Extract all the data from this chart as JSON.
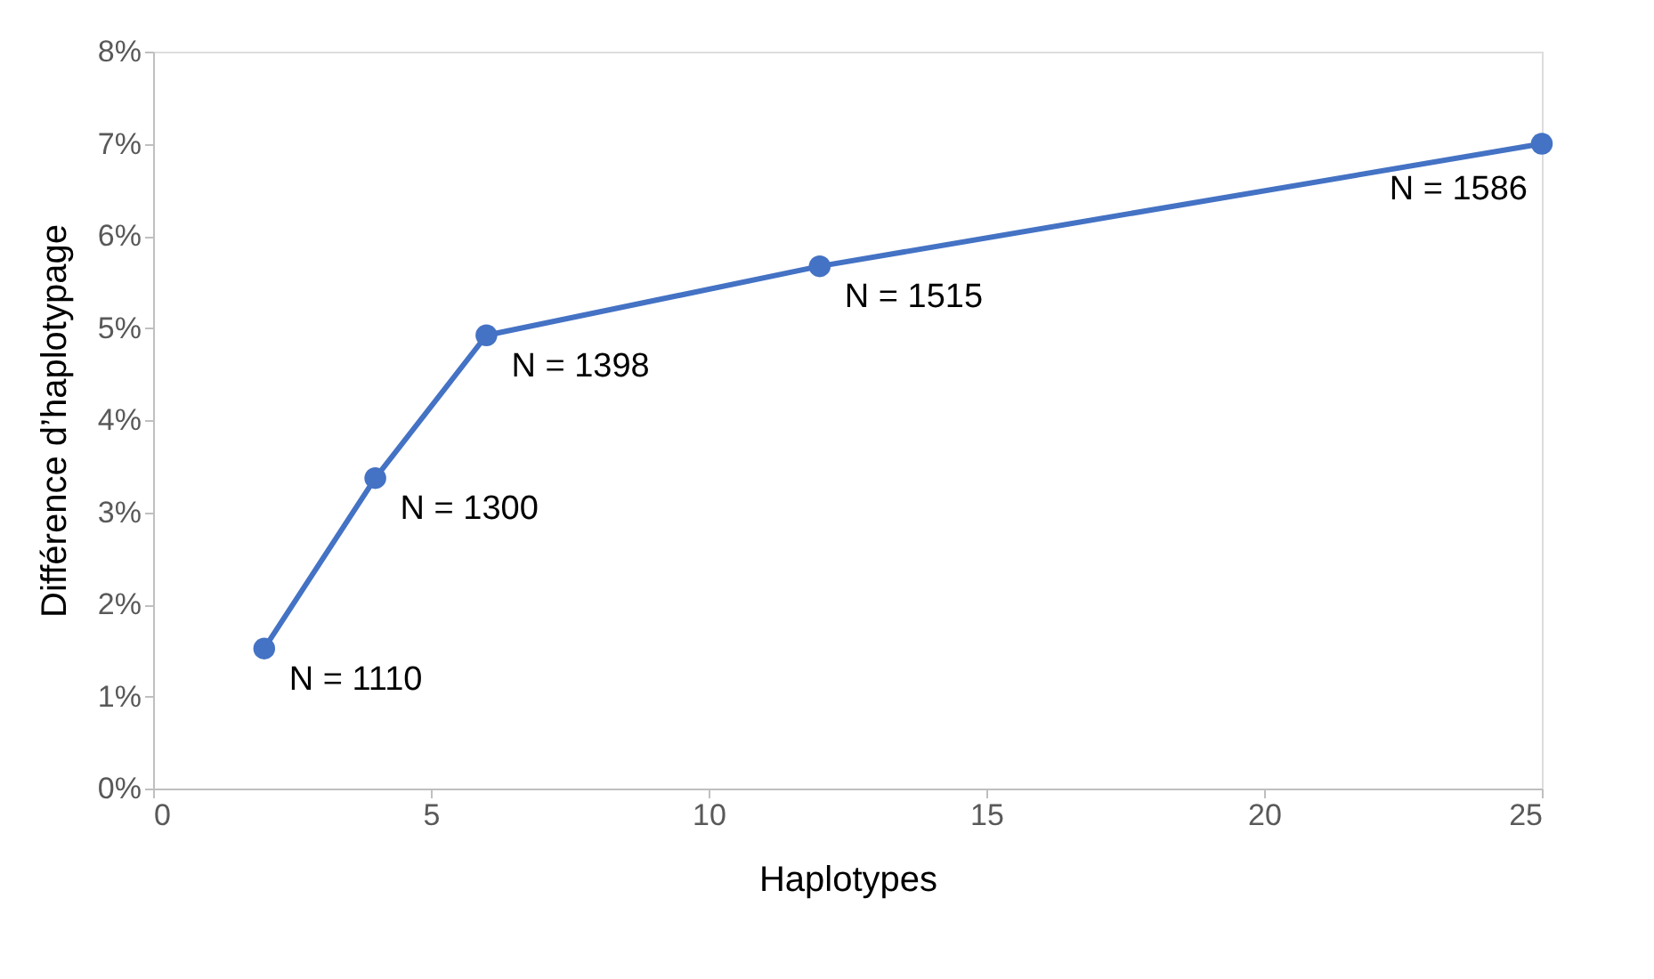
{
  "chart_data": {
    "type": "line",
    "xlabel": "Haplotypes",
    "ylabel": "Différence d’haplotypage",
    "x": [
      2,
      4,
      6,
      12,
      25
    ],
    "series": [
      {
        "color": "#4472c4",
        "values": [
          1.52,
          3.37,
          4.92,
          5.67,
          7.0
        ]
      }
    ],
    "xlim": [
      0,
      25
    ],
    "xticks": [
      0,
      5,
      10,
      15,
      20,
      25
    ],
    "ylim": [
      0,
      8
    ],
    "yticks": [
      {
        "value": 0,
        "label": "0%"
      },
      {
        "value": 1,
        "label": "1%"
      },
      {
        "value": 2,
        "label": "2%"
      },
      {
        "value": 3,
        "label": "3%"
      },
      {
        "value": 4,
        "label": "4%"
      },
      {
        "value": 5,
        "label": "5%"
      },
      {
        "value": 6,
        "label": "6%"
      },
      {
        "value": 7,
        "label": "7%"
      },
      {
        "value": 8,
        "label": "8%"
      }
    ],
    "annotations": [
      {
        "text": "N = 1110",
        "x": 2,
        "y": 1.52
      },
      {
        "text": "N = 1300",
        "x": 4,
        "y": 3.37
      },
      {
        "text": "N = 1398",
        "x": 6,
        "y": 4.92
      },
      {
        "text": "N = 1515",
        "x": 12,
        "y": 5.67
      },
      {
        "text": "N = 1586",
        "x": 25,
        "y": 7.0
      }
    ],
    "grid": false,
    "marker": "circle",
    "line_style": "solid"
  }
}
